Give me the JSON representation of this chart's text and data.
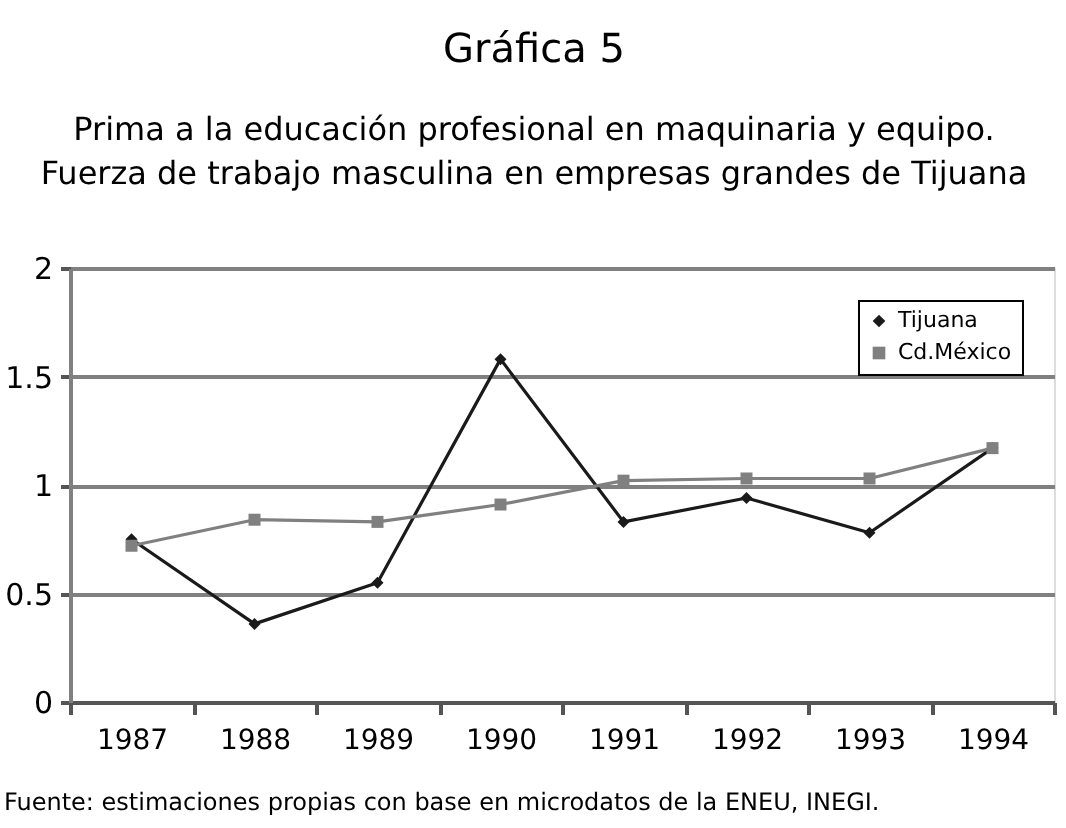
{
  "chart_data": {
    "type": "line",
    "title": "Gráfica 5",
    "subtitle": "Prima a la educación profesional en maquinaria y equipo.\nFuerza de trabajo masculina en empresas grandes de Tijuana",
    "categories": [
      "1987",
      "1988",
      "1989",
      "1990",
      "1991",
      "1992",
      "1993",
      "1994"
    ],
    "series": [
      {
        "name": "Tijuana",
        "color": "#1a1a1a",
        "marker": "diamond",
        "values": [
          0.75,
          0.36,
          0.55,
          1.58,
          0.83,
          0.94,
          0.78,
          1.17
        ]
      },
      {
        "name": "Cd.México",
        "color": "#808080",
        "marker": "square",
        "values": [
          0.72,
          0.84,
          0.83,
          0.91,
          1.02,
          1.03,
          1.03,
          1.17
        ]
      }
    ],
    "ylim": [
      0,
      2
    ],
    "yticks": [
      0,
      0.5,
      1,
      1.5,
      2
    ],
    "grid": "y",
    "legend": "top right",
    "line_style": "solid",
    "annotations": [
      "Fuente: estimaciones propias con base en microdatos de la ENEU, INEGI."
    ]
  }
}
